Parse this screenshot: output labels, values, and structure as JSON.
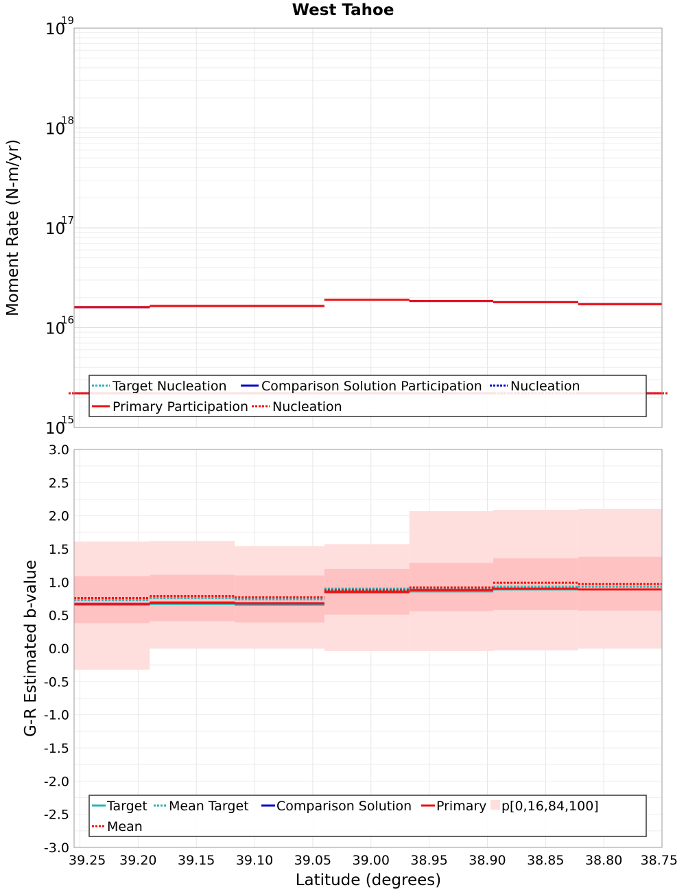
{
  "title": "West Tahoe",
  "xlabel": "Latitude (degrees)",
  "colors": {
    "target": "#2ab5b5",
    "comparison": "#0000cc",
    "primary": "#ee1111",
    "band_outer": "#ffdede",
    "band_inner": "#ffc2c2"
  },
  "chart_data": [
    {
      "type": "line",
      "title": "West Tahoe",
      "ylabel": "Moment Rate (N-m/yr)",
      "yscale": "log",
      "ylim": [
        1000000000000000.0,
        1e+19
      ],
      "xlim": [
        39.255,
        38.75
      ],
      "x_reversed": true,
      "y_ticks": [
        {
          "base": "10",
          "exp": "15"
        },
        {
          "base": "10",
          "exp": "16"
        },
        {
          "base": "10",
          "exp": "17"
        },
        {
          "base": "10",
          "exp": "18"
        },
        {
          "base": "10",
          "exp": "19"
        }
      ],
      "grid": true,
      "bin_edges": [
        39.255,
        39.19,
        39.117,
        39.04,
        38.967,
        38.895,
        38.822,
        38.75
      ],
      "series": [
        {
          "name": "Target Nucleation",
          "style": "dotted",
          "color": "#2ab5b5",
          "values": [
            2200000000000000.0,
            2200000000000000.0,
            2200000000000000.0,
            2200000000000000.0,
            2200000000000000.0,
            2200000000000000.0,
            2200000000000000.0
          ]
        },
        {
          "name": "Comparison Solution Participation",
          "style": "solid",
          "color": "#0000cc",
          "values": [
            1.6e+16,
            1.65e+16,
            1.65e+16,
            1.9e+16,
            1.85e+16,
            1.8e+16,
            1.72e+16
          ]
        },
        {
          "name": "Nucleation",
          "style": "dotted",
          "color": "#0000cc",
          "values": [
            2200000000000000.0,
            2200000000000000.0,
            2200000000000000.0,
            2200000000000000.0,
            2200000000000000.0,
            2200000000000000.0,
            2200000000000000.0
          ]
        },
        {
          "name": "Primary Participation",
          "style": "solid",
          "color": "#ee1111",
          "values": [
            1.6e+16,
            1.65e+16,
            1.65e+16,
            1.9e+16,
            1.85e+16,
            1.8e+16,
            1.72e+16
          ]
        },
        {
          "name": "Nucleation",
          "style": "dotted",
          "color": "#ee1111",
          "values": [
            2200000000000000.0,
            2200000000000000.0,
            2200000000000000.0,
            2200000000000000.0,
            2200000000000000.0,
            2200000000000000.0,
            2200000000000000.0
          ]
        }
      ],
      "legend": {
        "placement": "bottom",
        "rows": [
          [
            "Target Nucleation",
            "Comparison Solution Participation",
            "Nucleation"
          ],
          [
            "Primary Participation",
            "Nucleation"
          ]
        ]
      }
    },
    {
      "type": "line",
      "ylabel": "G-R Estimated b-value",
      "ylim": [
        -3.0,
        3.0
      ],
      "xlim": [
        39.255,
        38.75
      ],
      "x_reversed": true,
      "y_ticks": [
        "-3.0",
        "-2.5",
        "-2.0",
        "-1.5",
        "-1.0",
        "-0.5",
        "0.0",
        "0.5",
        "1.0",
        "1.5",
        "2.0",
        "2.5",
        "3.0"
      ],
      "x_ticks": [
        "39.25",
        "39.20",
        "39.15",
        "39.10",
        "39.05",
        "39.00",
        "38.95",
        "38.90",
        "38.85",
        "38.80",
        "38.75"
      ],
      "grid": true,
      "bin_edges": [
        39.255,
        39.19,
        39.117,
        39.04,
        38.967,
        38.895,
        38.822,
        38.75
      ],
      "bands": {
        "name": "p[0,16,84,100]",
        "p0": [
          -0.32,
          0.0,
          0.0,
          -0.04,
          -0.04,
          -0.03,
          0.0
        ],
        "p16": [
          0.38,
          0.41,
          0.39,
          0.51,
          0.56,
          0.58,
          0.57
        ],
        "p84": [
          1.09,
          1.11,
          1.1,
          1.2,
          1.29,
          1.36,
          1.38
        ],
        "p100": [
          1.61,
          1.62,
          1.54,
          1.57,
          2.07,
          2.09,
          2.1
        ]
      },
      "series": [
        {
          "name": "Target",
          "style": "solid",
          "color": "#2ab5b5",
          "values": [
            0.66,
            0.67,
            0.66,
            0.86,
            0.86,
            0.89,
            0.89
          ]
        },
        {
          "name": "Mean Target",
          "style": "dotted",
          "color": "#2ab5b5",
          "values": [
            0.73,
            0.76,
            0.74,
            0.9,
            0.9,
            0.93,
            0.93
          ]
        },
        {
          "name": "Comparison Solution",
          "style": "solid",
          "color": "#0000cc",
          "values": [
            0.67,
            0.69,
            0.68,
            0.85,
            0.88,
            0.9,
            0.89
          ]
        },
        {
          "name": "Primary",
          "style": "solid",
          "color": "#ee1111",
          "values": [
            0.67,
            0.69,
            0.68,
            0.85,
            0.88,
            0.9,
            0.89
          ]
        },
        {
          "name": "Mean",
          "style": "dotted",
          "color": "#ee1111",
          "values": [
            0.76,
            0.79,
            0.77,
            0.88,
            0.92,
            0.99,
            0.97
          ]
        }
      ],
      "legend": {
        "placement": "bottom",
        "rows": [
          [
            "Target",
            "Mean Target",
            "Comparison Solution",
            "Primary",
            "p[0,16,84,100]"
          ],
          [
            "Mean"
          ]
        ]
      }
    }
  ]
}
